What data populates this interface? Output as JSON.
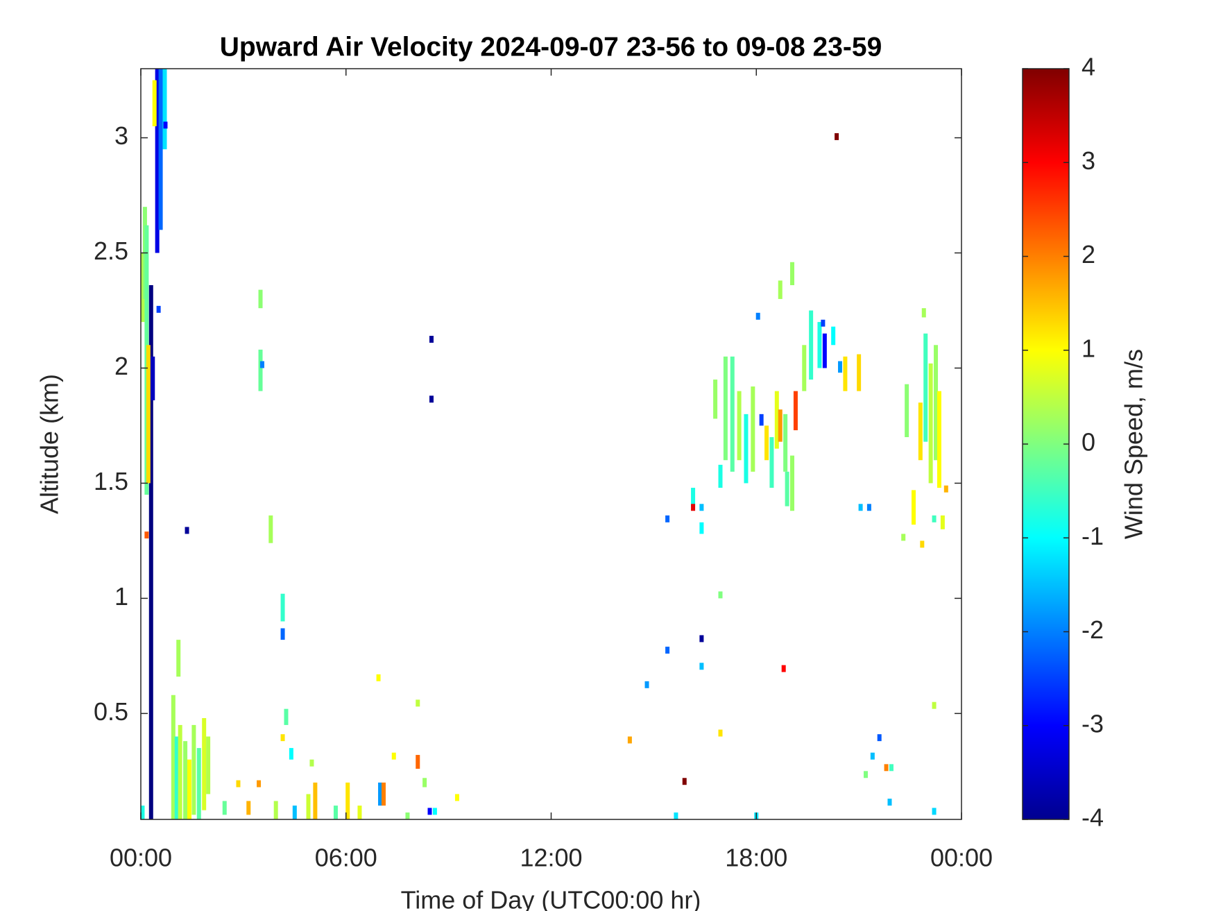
{
  "chart_data": {
    "type": "heatmap",
    "title": "Upward Air Velocity 2024-09-07 23-56 to 09-08 23-59",
    "x_label": "Time of Day (UTC00:00 hr)",
    "y_label": "Altitude (km)",
    "colorbar_label": "Wind Speed, m/s",
    "colormap": "jet",
    "clim": [
      -4,
      4
    ],
    "cticks": [
      -4,
      -3,
      -2,
      -1,
      0,
      1,
      2,
      3,
      4
    ],
    "xlim": [
      0,
      24
    ],
    "xticks": [
      {
        "value": 0,
        "label": "00:00"
      },
      {
        "value": 6,
        "label": "06:00"
      },
      {
        "value": 12,
        "label": "12:00"
      },
      {
        "value": 18,
        "label": "18:00"
      },
      {
        "value": 24,
        "label": "00:00"
      }
    ],
    "ylim": [
      0.04,
      3.3
    ],
    "yticks": [
      0.5,
      1,
      1.5,
      2,
      2.5,
      3
    ],
    "x": [
      0.3,
      0.48,
      0.58,
      0.7,
      0.4,
      0.05,
      0.12,
      0.17,
      0.22,
      0.35,
      0.52,
      0.72,
      0.17,
      0.05,
      0.95,
      1.05,
      1.15,
      1.3,
      1.42,
      1.55,
      1.7,
      1.85,
      1.97,
      1.1,
      1.35,
      2.45,
      2.85,
      3.15,
      3.45,
      3.5,
      3.5,
      3.55,
      3.8,
      3.95,
      4.15,
      4.15,
      4.15,
      4.25,
      4.4,
      4.5,
      4.9,
      5.1,
      5.0,
      5.7,
      6.05,
      6.4,
      6.95,
      7.0,
      7.1,
      7.4,
      7.8,
      8.1,
      8.1,
      8.3,
      8.45,
      8.6,
      8.5,
      8.5,
      9.25,
      14.3,
      14.8,
      15.4,
      15.4,
      15.65,
      15.9,
      16.15,
      16.15,
      16.4,
      16.4,
      16.4,
      16.4,
      16.95,
      16.95,
      16.95,
      16.8,
      17.1,
      17.3,
      17.5,
      17.7,
      17.9,
      18.05,
      18.15,
      18.3,
      18.45,
      18.6,
      18.7,
      18.85,
      18.7,
      18.9,
      19.05,
      19.15,
      19.05,
      18.8,
      18.0,
      19.4,
      19.6,
      19.85,
      19.95,
      20.0,
      20.25,
      20.35,
      20.45,
      20.6,
      21.0,
      21.05,
      21.3,
      21.2,
      21.4,
      21.6,
      21.8,
      21.95,
      21.9,
      22.3,
      22.4,
      22.6,
      22.8,
      22.95,
      23.1,
      23.25,
      23.35,
      23.45,
      23.55,
      22.9,
      23.2,
      23.2,
      22.85,
      23.2
    ],
    "y_bottom": [
      0.04,
      2.5,
      2.6,
      2.95,
      3.05,
      2.2,
      2.3,
      1.45,
      1.5,
      1.86,
      2.24,
      3.04,
      1.26,
      0.04,
      0.04,
      0.04,
      0.04,
      0.04,
      0.04,
      0.06,
      0.04,
      0.08,
      0.15,
      0.66,
      1.28,
      0.06,
      0.18,
      0.06,
      0.18,
      2.26,
      1.9,
      2.0,
      1.24,
      0.04,
      0.9,
      0.82,
      0.38,
      0.45,
      0.3,
      0.04,
      0.04,
      0.04,
      0.27,
      0.04,
      0.04,
      0.04,
      0.64,
      0.1,
      0.1,
      0.3,
      0.04,
      0.26,
      0.53,
      0.18,
      0.06,
      0.06,
      2.11,
      1.85,
      0.12,
      0.37,
      0.61,
      0.76,
      1.33,
      0.04,
      0.19,
      1.4,
      1.38,
      1.38,
      1.28,
      0.81,
      0.69,
      1.48,
      1.0,
      0.4,
      1.78,
      1.6,
      1.55,
      1.6,
      1.5,
      1.55,
      2.21,
      1.75,
      1.6,
      1.48,
      1.65,
      1.68,
      1.55,
      2.3,
      1.4,
      1.38,
      1.73,
      2.36,
      0.68,
      0.04,
      1.9,
      1.95,
      2.0,
      2.18,
      2.0,
      2.1,
      2.99,
      1.98,
      1.9,
      1.9,
      1.38,
      1.38,
      0.22,
      0.3,
      0.38,
      0.25,
      0.25,
      0.1,
      1.25,
      1.7,
      1.32,
      1.6,
      1.68,
      1.5,
      1.6,
      1.48,
      1.3,
      1.46,
      2.22,
      0.52,
      0.06,
      1.22,
      1.33
    ],
    "y_top": [
      2.36,
      3.3,
      3.3,
      3.3,
      3.25,
      2.5,
      2.7,
      2.62,
      2.1,
      2.05,
      2.27,
      3.07,
      1.29,
      0.1,
      0.58,
      0.4,
      0.45,
      0.38,
      0.3,
      0.45,
      0.35,
      0.48,
      0.4,
      0.82,
      1.31,
      0.12,
      0.21,
      0.12,
      0.21,
      2.34,
      2.08,
      2.03,
      1.36,
      0.12,
      1.02,
      0.87,
      0.41,
      0.52,
      0.35,
      0.1,
      0.15,
      0.2,
      0.3,
      0.1,
      0.2,
      0.1,
      0.67,
      0.2,
      0.2,
      0.33,
      0.07,
      0.32,
      0.56,
      0.22,
      0.09,
      0.09,
      2.14,
      1.88,
      0.15,
      0.4,
      0.64,
      0.79,
      1.36,
      0.07,
      0.22,
      1.48,
      1.41,
      1.41,
      1.33,
      0.84,
      0.72,
      1.58,
      1.03,
      0.43,
      1.95,
      2.05,
      2.05,
      1.9,
      1.8,
      1.92,
      2.24,
      1.8,
      1.75,
      1.7,
      1.9,
      1.82,
      1.8,
      2.38,
      1.55,
      1.62,
      1.9,
      2.46,
      0.71,
      0.07,
      2.1,
      2.25,
      2.2,
      2.21,
      2.15,
      2.18,
      3.02,
      2.03,
      2.05,
      2.06,
      1.41,
      1.41,
      0.25,
      0.33,
      0.41,
      0.28,
      0.28,
      0.13,
      1.28,
      1.93,
      1.47,
      1.85,
      2.15,
      2.02,
      2.1,
      1.9,
      1.36,
      1.49,
      2.26,
      0.55,
      0.09,
      1.25,
      1.36
    ],
    "values": [
      -4,
      -3.2,
      -2.2,
      -1.2,
      1.0,
      0.4,
      0.1,
      -0.2,
      1.3,
      -3.5,
      -2.5,
      -3,
      2.3,
      -0.8,
      0.3,
      -0.6,
      0.5,
      0.2,
      1.0,
      0.3,
      -0.3,
      0.7,
      0.4,
      0.3,
      -3.8,
      -0.2,
      1.3,
      1.6,
      1.8,
      0.1,
      -0.2,
      -2,
      0.3,
      0.4,
      -0.6,
      -2.2,
      1.2,
      -0.3,
      -1,
      -1.5,
      0.6,
      1.5,
      0.4,
      -0.3,
      1.2,
      0.8,
      1.0,
      -1.8,
      2.0,
      1.0,
      0.1,
      2.2,
      0.5,
      0.2,
      -3,
      -1,
      -3.8,
      -3.8,
      1.0,
      1.7,
      -1.8,
      -2.2,
      -2.2,
      -1.2,
      4,
      -0.8,
      3.2,
      -1.5,
      -1,
      -3.8,
      -1.5,
      -0.8,
      0,
      1.2,
      0.2,
      0,
      -0.3,
      0.4,
      -0.8,
      0.3,
      -2,
      -2.5,
      1.2,
      -0.5,
      0.8,
      1.8,
      0,
      0.3,
      -0.3,
      0.2,
      2.5,
      0.2,
      3.0,
      -1.2,
      0.3,
      -0.6,
      -0.8,
      -2.5,
      -3,
      -1,
      4,
      -1.8,
      1.2,
      1.3,
      -1.5,
      -2,
      0,
      -1.5,
      -2.3,
      2.0,
      -0.5,
      -1.5,
      0.3,
      0.1,
      1.0,
      1.2,
      -0.5,
      0.5,
      0.2,
      1.0,
      0.8,
      1.6,
      0.3,
      0.5,
      -1.3,
      1.3,
      -0.5
    ]
  }
}
